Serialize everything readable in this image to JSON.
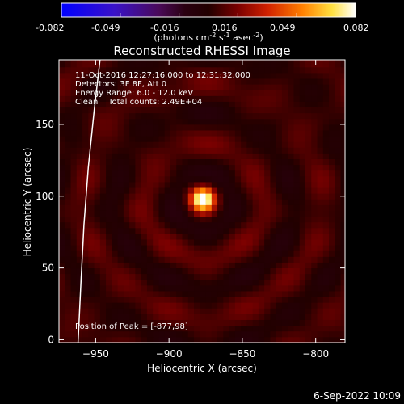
{
  "colorbar": {
    "tick_labels": [
      "-0.082",
      "-0.049",
      "-0.016",
      "0.016",
      "0.049",
      "0.082"
    ],
    "range": [
      -0.082,
      0.082
    ],
    "unit_label_parts": [
      "(photons cm",
      "-2",
      " s",
      "-1",
      " asec",
      "-2",
      ")"
    ],
    "colormap": "red-temperature (negative blue/purple, positive red-yellow-white)"
  },
  "title": "Reconstructed RHESSI Image",
  "info_lines": [
    "11-Oct-2016 12:27:16.000 to 12:31:32.000",
    "Detectors: 3F 8F, Att 0",
    "Energy Range: 6.0 - 12.0 keV",
    "Clean    Total counts: 2.49E+04"
  ],
  "peak_text": "Position of Peak = [-877,98]",
  "timestamp": "6-Sep-2022 10:09",
  "colors": {
    "background": "#000000",
    "text": "#ffffff",
    "limb": "#ffffff"
  },
  "chart_data": {
    "type": "heatmap",
    "xlabel": "Heliocentric X (arcsec)",
    "ylabel": "Heliocentric Y (arcsec)",
    "xlim": [
      -975,
      -780
    ],
    "ylim": [
      -2,
      195
    ],
    "x_ticks": [
      -950,
      -900,
      -850,
      -800
    ],
    "y_ticks": [
      0,
      50,
      100,
      150
    ],
    "peak": {
      "x": -877,
      "y": 98,
      "value": 0.082
    },
    "source_fwhm_arcsec": 13,
    "solar_limb": {
      "points": [
        [
          -962,
          -2
        ],
        [
          -960,
          40
        ],
        [
          -958,
          80
        ],
        [
          -955,
          120
        ],
        [
          -951,
          160
        ],
        [
          -947,
          195
        ]
      ]
    }
  }
}
